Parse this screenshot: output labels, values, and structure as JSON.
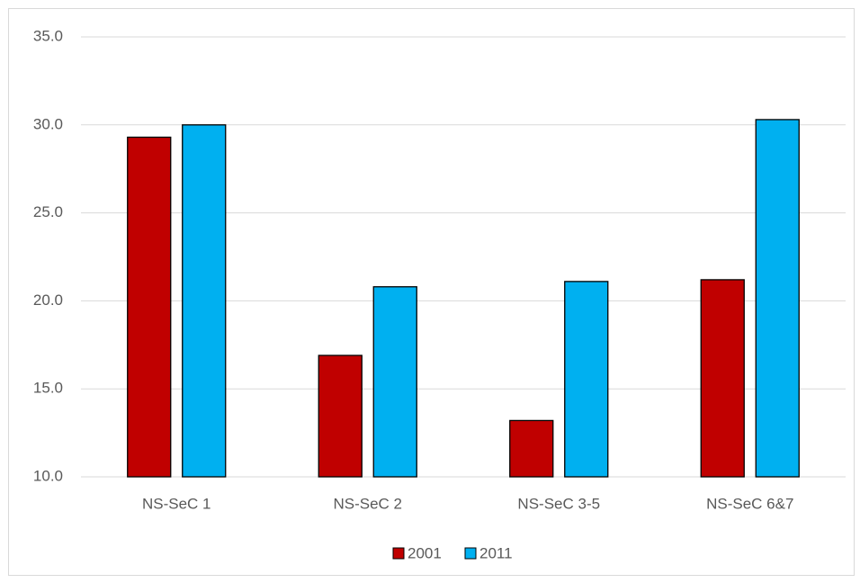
{
  "chart_data": {
    "type": "bar",
    "categories": [
      "NS-SeC 1",
      "NS-SeC 2",
      "NS-SeC 3-5",
      "NS-SeC 6&7"
    ],
    "series": [
      {
        "name": "2001",
        "color": "#c00000",
        "values": [
          29.3,
          16.9,
          13.2,
          21.2
        ]
      },
      {
        "name": "2011",
        "color": "#00b0f0",
        "values": [
          30.0,
          20.8,
          21.1,
          30.3
        ]
      }
    ],
    "ylim": [
      10,
      35
    ],
    "yticks": [
      {
        "value": 10,
        "label": "10.0"
      },
      {
        "value": 15,
        "label": "15.0"
      },
      {
        "value": 20,
        "label": "20.0"
      },
      {
        "value": 25,
        "label": "25.0"
      },
      {
        "value": 30,
        "label": "30.0"
      },
      {
        "value": 35,
        "label": "35.0"
      }
    ],
    "grid": true,
    "legend": "bottom"
  }
}
